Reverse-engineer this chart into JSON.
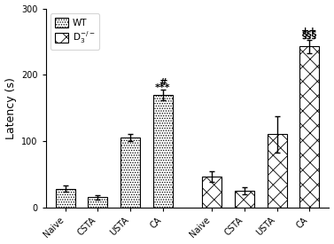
{
  "groups_wt": [
    "Naive",
    "CSTA",
    "USTA",
    "CA"
  ],
  "groups_d3": [
    "Naive",
    "CSTA",
    "USTA",
    "CA"
  ],
  "wt_values": [
    28,
    15,
    105,
    170
  ],
  "wt_errors": [
    5,
    3,
    5,
    8
  ],
  "d3_values": [
    47,
    25,
    110,
    243
  ],
  "d3_errors": [
    8,
    5,
    28,
    10
  ],
  "ylim": [
    0,
    300
  ],
  "yticks": [
    0,
    100,
    200,
    300
  ],
  "ylabel": "Latency (s)",
  "bar_edge_color": "#000000",
  "bar_width": 0.6,
  "background_color": "#ffffff",
  "tick_fontsize": 7,
  "label_fontsize": 9,
  "legend_fontsize": 7.5,
  "annot_fontsize": 8,
  "wt_ca_annot_line1": "#",
  "wt_ca_annot_line2": "***",
  "d3_ca_annot_line1": "++",
  "d3_ca_annot_line2": "§§§"
}
